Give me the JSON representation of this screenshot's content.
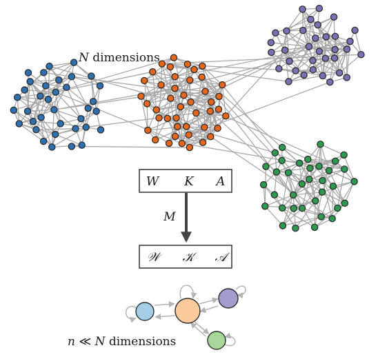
{
  "top_label": {
    "var": "N",
    "text": " dimensions"
  },
  "bottom_label": {
    "var": "n",
    "rel": " ≪ ",
    "var2": "N",
    "text": " dimensions"
  },
  "box_top": {
    "items": [
      "W",
      "K",
      "A"
    ]
  },
  "box_bottom": {
    "items": [
      "𝒲",
      "𝒦",
      "𝒜"
    ]
  },
  "arrow_label": "M",
  "colors": {
    "blue": "#2e70b0",
    "orange": "#e8661c",
    "purple": "#7d6fb3",
    "green": "#2e9a4f",
    "edge": "#a8a8a8",
    "mini_blue": "#a5cde6",
    "mini_orange": "#fccb9c",
    "mini_purple": "#a49ccd",
    "mini_green": "#a7d899"
  },
  "clusters": [
    {
      "name": "blue-cluster",
      "color": "blue",
      "node_count": 36
    },
    {
      "name": "orange-cluster",
      "color": "orange",
      "node_count": 44
    },
    {
      "name": "purple-cluster",
      "color": "purple",
      "node_count": 34
    },
    {
      "name": "green-cluster",
      "color": "green",
      "node_count": 36
    }
  ],
  "reduced_graph": {
    "nodes": [
      {
        "name": "mini-blue-node",
        "color": "mini_blue"
      },
      {
        "name": "mini-orange-node",
        "color": "mini_orange"
      },
      {
        "name": "mini-purple-node",
        "color": "mini_purple"
      },
      {
        "name": "mini-green-node",
        "color": "mini_green"
      }
    ]
  }
}
